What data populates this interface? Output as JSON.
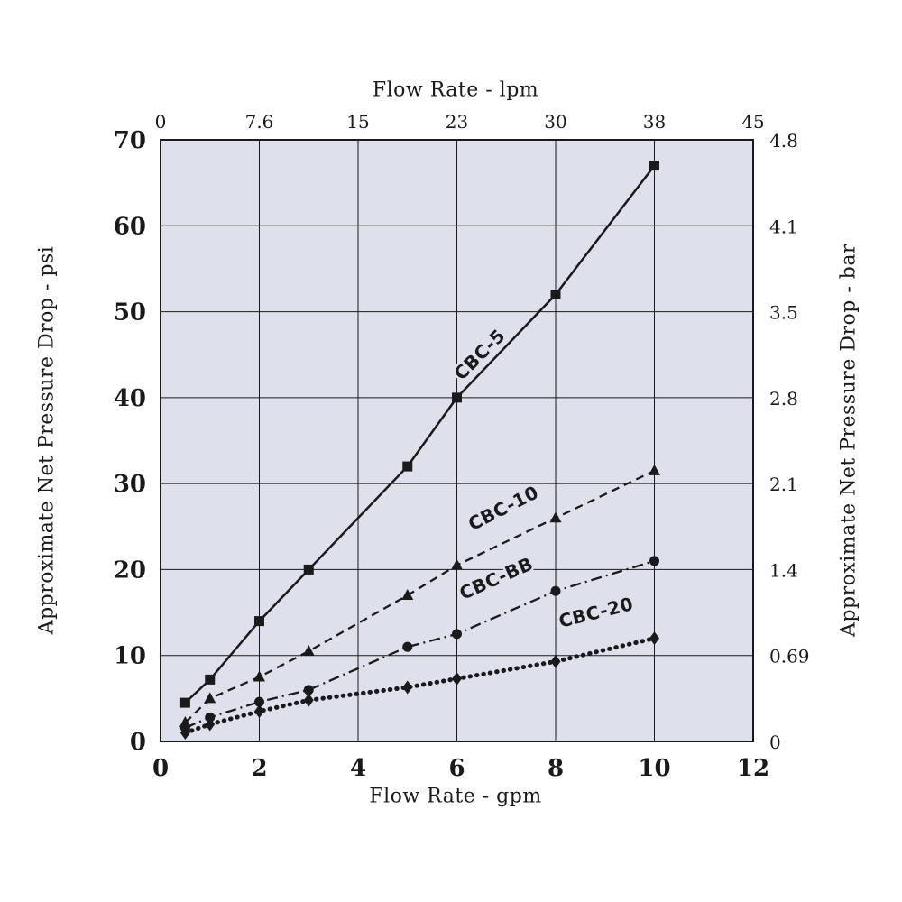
{
  "chart_data": {
    "type": "line",
    "title": "",
    "grid": true,
    "legend": "inline-rotated-labels",
    "colors": {
      "ink": "#1a1a1a",
      "plot_bg": "#dee1eb",
      "page_bg": "#ffffff"
    },
    "x_bottom": {
      "label": "Flow Rate - gpm",
      "ticks": [
        0,
        2,
        4,
        6,
        8,
        10,
        12
      ],
      "range": [
        0,
        12
      ]
    },
    "x_top": {
      "label": "Flow Rate - lpm",
      "tick_labels": [
        "0",
        "7.6",
        "15",
        "23",
        "30",
        "38",
        "45"
      ],
      "tick_positions_gpm": [
        0,
        2,
        4,
        6,
        8,
        10,
        12
      ]
    },
    "y_left": {
      "label": "Approximate Net Pressure Drop - psi",
      "ticks": [
        0,
        10,
        20,
        30,
        40,
        50,
        60,
        70
      ],
      "range": [
        0,
        70
      ]
    },
    "y_right": {
      "label": "Approximate Net Pressure Drop - bar",
      "tick_labels": [
        "0",
        "0.69",
        "1.4",
        "2.1",
        "2.8",
        "3.5",
        "4.1",
        "4.8"
      ],
      "tick_positions_psi": [
        0,
        10,
        20,
        30,
        40,
        50,
        60,
        70
      ]
    },
    "series": [
      {
        "id": "cbc-5",
        "name": "CBC-5",
        "marker": "square",
        "line": "solid",
        "points": [
          [
            0.5,
            4.5
          ],
          [
            1,
            7.2
          ],
          [
            2,
            14
          ],
          [
            3,
            20
          ],
          [
            5,
            32
          ],
          [
            6,
            40
          ],
          [
            8,
            52
          ],
          [
            10,
            67
          ]
        ],
        "label_pos": [
          6.55,
          44.5
        ],
        "label_angle": -45
      },
      {
        "id": "cbc-10",
        "name": "CBC-10",
        "marker": "triangle",
        "line": "dashed",
        "points": [
          [
            0.5,
            2.2
          ],
          [
            1,
            5
          ],
          [
            2,
            7.5
          ],
          [
            3,
            10.5
          ],
          [
            5,
            17
          ],
          [
            6,
            20.5
          ],
          [
            8,
            26
          ],
          [
            10,
            31.5
          ]
        ],
        "label_pos": [
          7.0,
          26.5
        ],
        "label_angle": -27
      },
      {
        "id": "cbc-bb",
        "name": "CBC-BB",
        "marker": "circle",
        "line": "dashdot",
        "points": [
          [
            0.5,
            1.6
          ],
          [
            1,
            2.8
          ],
          [
            2,
            4.6
          ],
          [
            3,
            6
          ],
          [
            5,
            11
          ],
          [
            6,
            12.5
          ],
          [
            8,
            17.5
          ],
          [
            10,
            21
          ]
        ],
        "label_pos": [
          6.85,
          18.3
        ],
        "label_angle": -24
      },
      {
        "id": "cbc-20",
        "name": "CBC-20",
        "marker": "diamond",
        "line": "dotted_bold",
        "points": [
          [
            0.5,
            1
          ],
          [
            1,
            2
          ],
          [
            2,
            3.5
          ],
          [
            3,
            4.8
          ],
          [
            5,
            6.3
          ],
          [
            6,
            7.3
          ],
          [
            8,
            9.3
          ],
          [
            10,
            12
          ]
        ],
        "label_pos": [
          8.85,
          14.3
        ],
        "label_angle": -14
      }
    ]
  }
}
